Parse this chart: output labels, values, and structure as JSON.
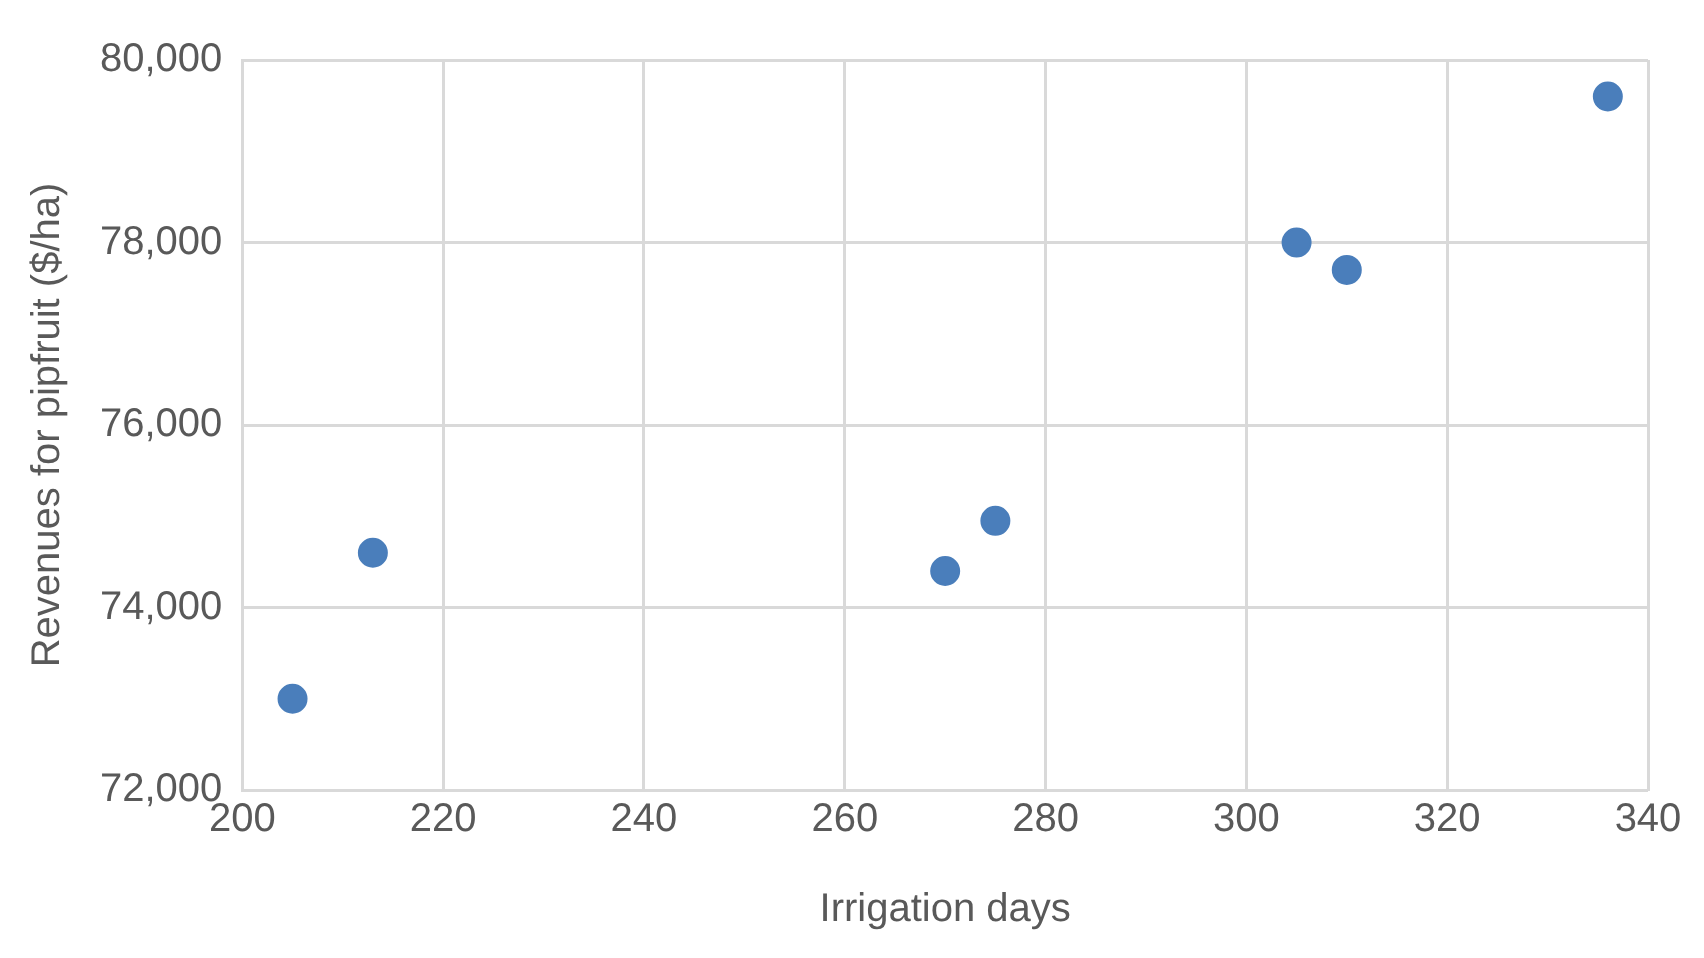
{
  "chart_data": {
    "type": "scatter",
    "xlabel": "Irrigation days",
    "ylabel": "Revenues for pipfruit ($/ha)",
    "x": [
      205,
      213,
      270,
      275,
      305,
      310,
      336
    ],
    "values": [
      73000,
      74600,
      74400,
      74950,
      78000,
      77700,
      79600
    ],
    "color": "#4a7ebb",
    "marker": "circle",
    "grid": true,
    "legend": false,
    "xlim": [
      200,
      340
    ],
    "xticks": [
      200,
      220,
      240,
      260,
      280,
      300,
      320,
      340
    ],
    "ylim": [
      72000,
      80000
    ],
    "yticks": [
      {
        "value": 72000,
        "label": "72,000"
      },
      {
        "value": 74000,
        "label": "74,000"
      },
      {
        "value": 76000,
        "label": "76,000"
      },
      {
        "value": 78000,
        "label": "78,000"
      },
      {
        "value": 80000,
        "label": "80,000"
      }
    ]
  }
}
